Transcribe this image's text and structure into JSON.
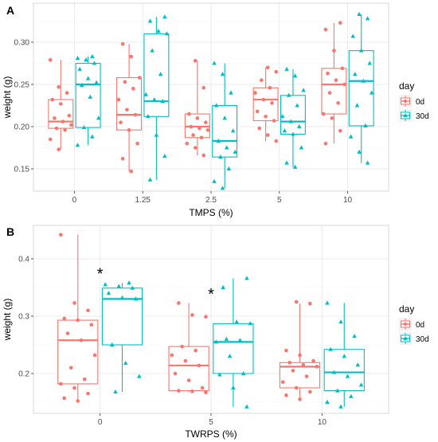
{
  "colors": {
    "d0": "#F8766D",
    "d30": "#00BFC4",
    "panel_bg": "#FFFFFF",
    "grid_major": "#EBEBEB",
    "grid_minor": "#F5F5F5",
    "panel_border": "#D9D9D9"
  },
  "chart_data": [
    {
      "panel_label": "A",
      "type": "boxplot",
      "xlabel": "TMPS (%)",
      "ylabel": "weight (g)",
      "categories": [
        "0",
        "1.25",
        "2.5",
        "5",
        "10"
      ],
      "y_ticks": [
        "0.15",
        "0.20",
        "0.25",
        "0.30"
      ],
      "ylim": [
        0.125,
        0.335
      ],
      "legend": {
        "title": "day",
        "entries": [
          "0d",
          "30d"
        ],
        "placement": "right"
      },
      "series": [
        {
          "name": "0d",
          "shape": "circle",
          "boxes": [
            {
              "min": 0.173,
              "q1": 0.198,
              "median": 0.206,
              "q3": 0.232,
              "max": 0.279
            },
            {
              "min": 0.147,
              "q1": 0.196,
              "median": 0.214,
              "q3": 0.258,
              "max": 0.298
            },
            {
              "min": 0.166,
              "q1": 0.187,
              "median": 0.2,
              "q3": 0.215,
              "max": 0.278
            },
            {
              "min": 0.183,
              "q1": 0.207,
              "median": 0.232,
              "q3": 0.246,
              "max": 0.27
            },
            {
              "min": 0.18,
              "q1": 0.215,
              "median": 0.25,
              "q3": 0.269,
              "max": 0.323
            }
          ],
          "points": [
            [
              0.279,
              0.247,
              0.24,
              0.232,
              0.227,
              0.213,
              0.21,
              0.206,
              0.202,
              0.198,
              0.196,
              0.185,
              0.173
            ],
            [
              0.298,
              0.283,
              0.258,
              0.253,
              0.245,
              0.232,
              0.22,
              0.214,
              0.205,
              0.196,
              0.18,
              0.162,
              0.147
            ],
            [
              0.278,
              0.246,
              0.215,
              0.21,
              0.205,
              0.2,
              0.198,
              0.196,
              0.19,
              0.187,
              0.18,
              0.175,
              0.166
            ],
            [
              0.27,
              0.265,
              0.255,
              0.246,
              0.24,
              0.232,
              0.228,
              0.218,
              0.212,
              0.207,
              0.198,
              0.19,
              0.183
            ],
            [
              0.323,
              0.315,
              0.29,
              0.269,
              0.263,
              0.255,
              0.25,
              0.24,
              0.228,
              0.215,
              0.21,
              0.195,
              0.18
            ]
          ]
        },
        {
          "name": "30d",
          "shape": "triangle",
          "boxes": [
            {
              "min": 0.178,
              "q1": 0.199,
              "median": 0.25,
              "q3": 0.275,
              "max": 0.283
            },
            {
              "min": 0.137,
              "q1": 0.212,
              "median": 0.23,
              "q3": 0.31,
              "max": 0.33
            },
            {
              "min": 0.127,
              "q1": 0.164,
              "median": 0.183,
              "q3": 0.225,
              "max": 0.275
            },
            {
              "min": 0.152,
              "q1": 0.191,
              "median": 0.206,
              "q3": 0.237,
              "max": 0.268
            },
            {
              "min": 0.157,
              "q1": 0.201,
              "median": 0.254,
              "q3": 0.29,
              "max": 0.333
            }
          ],
          "points": [
            [
              0.283,
              0.281,
              0.279,
              0.275,
              0.268,
              0.257,
              0.252,
              0.249,
              0.235,
              0.21,
              0.199,
              0.188,
              0.178
            ],
            [
              0.33,
              0.325,
              0.313,
              0.31,
              0.29,
              0.262,
              0.238,
              0.232,
              0.23,
              0.212,
              0.19,
              0.165,
              0.137
            ],
            [
              0.275,
              0.262,
              0.24,
              0.225,
              0.21,
              0.195,
              0.183,
              0.175,
              0.17,
              0.164,
              0.15,
              0.135,
              0.127
            ],
            [
              0.268,
              0.26,
              0.243,
              0.237,
              0.225,
              0.212,
              0.206,
              0.2,
              0.195,
              0.191,
              0.175,
              0.157,
              0.152
            ],
            [
              0.333,
              0.328,
              0.307,
              0.29,
              0.275,
              0.262,
              0.254,
              0.24,
              0.225,
              0.201,
              0.188,
              0.17,
              0.157
            ]
          ]
        }
      ]
    },
    {
      "panel_label": "B",
      "type": "boxplot",
      "xlabel": "TWRPS (%)",
      "ylabel": "weight (g)",
      "categories": [
        "0",
        "5",
        "10"
      ],
      "y_ticks": [
        "0.2",
        "0.3",
        "0.4"
      ],
      "ylim": [
        0.14,
        0.45
      ],
      "legend": {
        "title": "day",
        "entries": [
          "0d",
          "30d"
        ],
        "placement": "right"
      },
      "annotations": [
        {
          "text": "*",
          "category": "0",
          "y": 0.376
        },
        {
          "text": "*",
          "category": "5",
          "y": 0.34
        }
      ],
      "series": [
        {
          "name": "0d",
          "shape": "circle",
          "boxes": [
            {
              "min": 0.152,
              "q1": 0.182,
              "median": 0.258,
              "q3": 0.293,
              "max": 0.442
            },
            {
              "min": 0.167,
              "q1": 0.17,
              "median": 0.214,
              "q3": 0.247,
              "max": 0.323
            },
            {
              "min": 0.155,
              "q1": 0.175,
              "median": 0.212,
              "q3": 0.219,
              "max": 0.322
            }
          ],
          "points": [
            [
              0.442,
              0.323,
              0.31,
              0.296,
              0.293,
              0.285,
              0.27,
              0.258,
              0.232,
              0.21,
              0.19,
              0.182,
              0.175,
              0.165,
              0.157,
              0.152
            ],
            [
              0.323,
              0.302,
              0.299,
              0.247,
              0.24,
              0.232,
              0.222,
              0.214,
              0.2,
              0.188,
              0.175,
              0.17,
              0.169,
              0.167
            ],
            [
              0.325,
              0.322,
              0.24,
              0.232,
              0.222,
              0.219,
              0.215,
              0.212,
              0.205,
              0.195,
              0.185,
              0.175,
              0.168,
              0.162,
              0.155
            ]
          ]
        },
        {
          "name": "30d",
          "shape": "triangle",
          "boxes": [
            {
              "min": 0.168,
              "q1": 0.25,
              "median": 0.33,
              "q3": 0.349,
              "max": 0.358
            },
            {
              "min": 0.142,
              "q1": 0.2,
              "median": 0.255,
              "q3": 0.287,
              "max": 0.366
            },
            {
              "min": 0.142,
              "q1": 0.17,
              "median": 0.202,
              "q3": 0.242,
              "max": 0.323
            }
          ],
          "points": [
            [
              0.358,
              0.355,
              0.352,
              0.349,
              0.34,
              0.332,
              0.33,
              0.25,
              0.218,
              0.195,
              0.168
            ],
            [
              0.366,
              0.35,
              0.29,
              0.287,
              0.26,
              0.258,
              0.255,
              0.23,
              0.2,
              0.198,
              0.175,
              0.142
            ],
            [
              0.323,
              0.29,
              0.265,
              0.242,
              0.23,
              0.215,
              0.202,
              0.195,
              0.18,
              0.17,
              0.16,
              0.15,
              0.142
            ]
          ]
        }
      ]
    }
  ]
}
